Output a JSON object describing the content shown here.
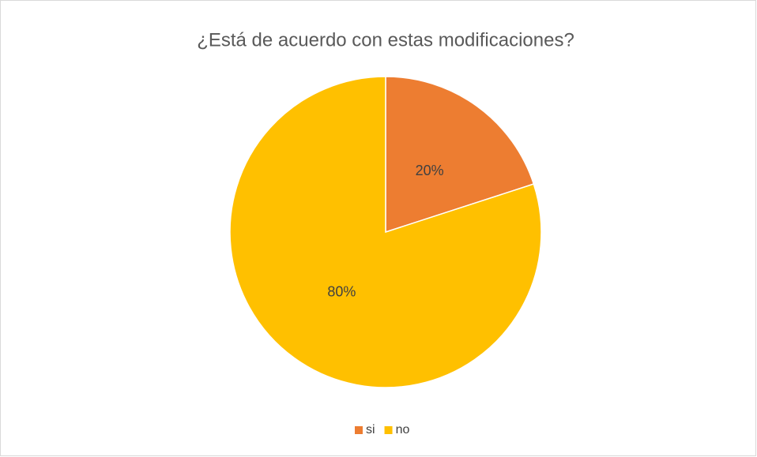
{
  "chart_data": {
    "type": "pie",
    "title": "¿Está de acuerdo con estas modificaciones?",
    "categories": [
      "si",
      "no"
    ],
    "values": [
      20,
      80
    ],
    "value_labels": [
      "20%",
      "80%"
    ],
    "colors": [
      "#ED7D31",
      "#FFC000"
    ],
    "legend": "bottom"
  }
}
